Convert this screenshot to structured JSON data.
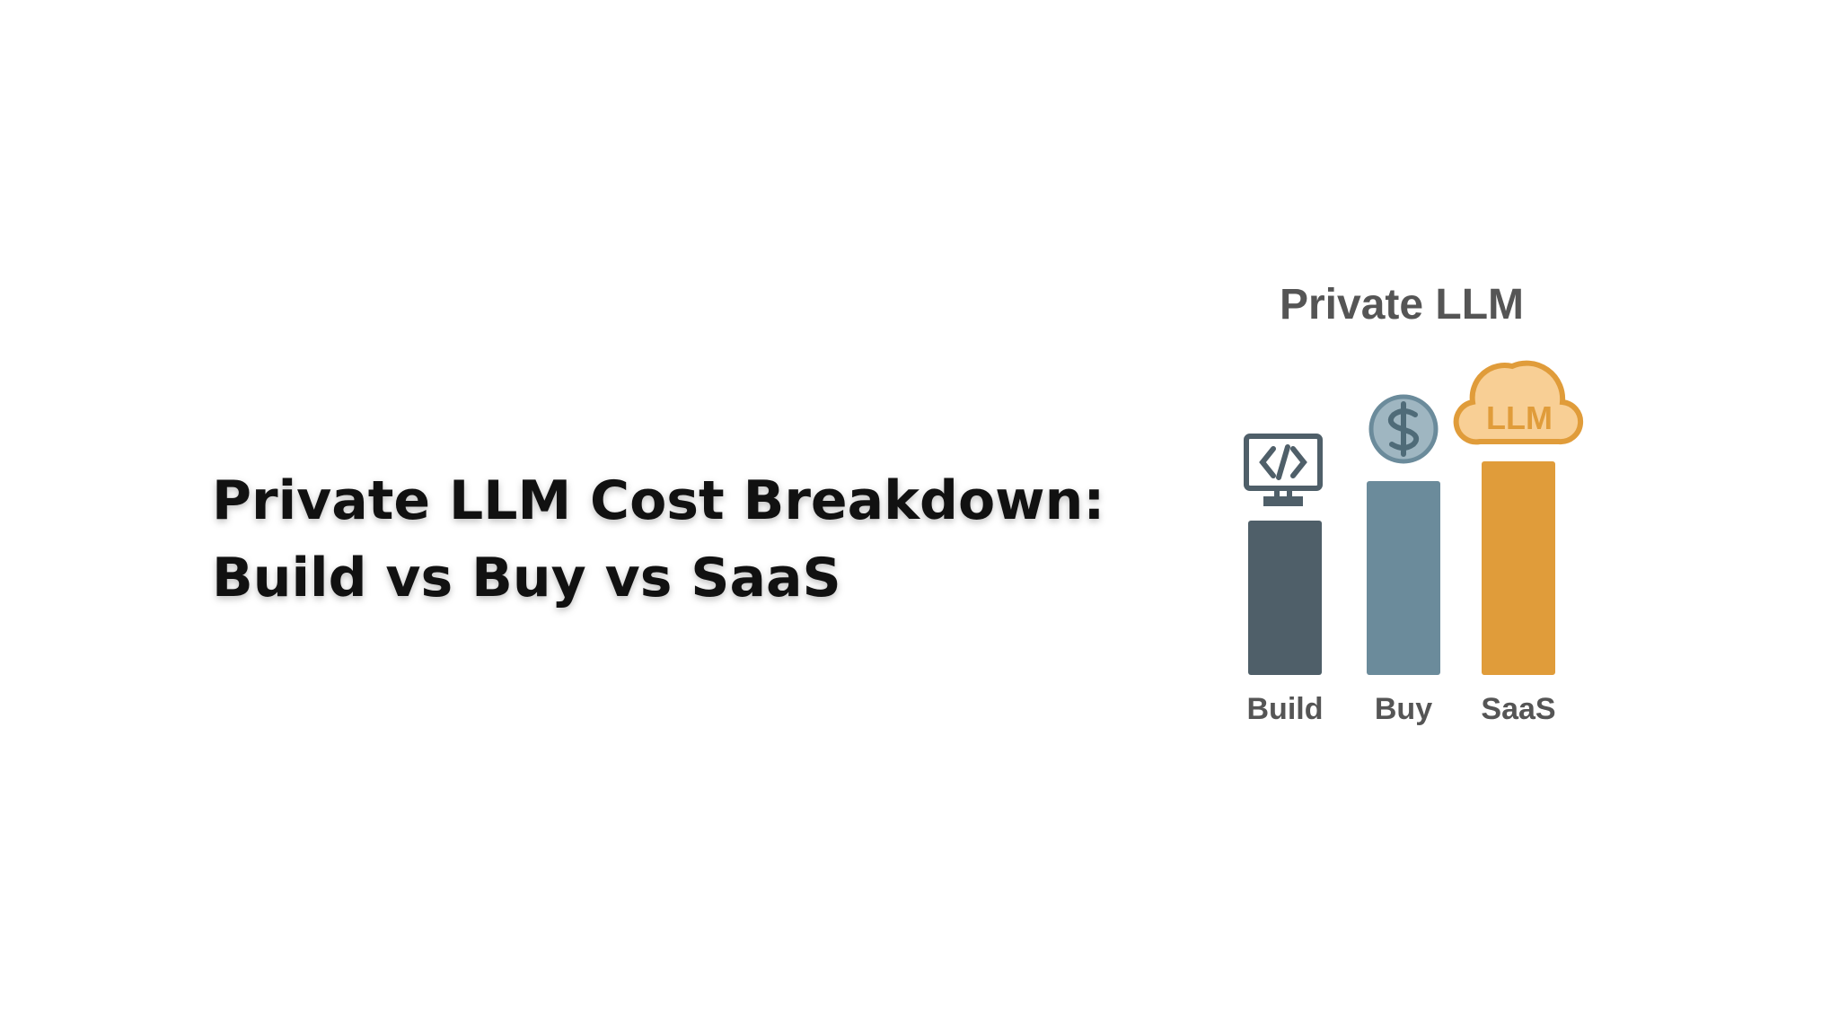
{
  "headline": {
    "lines": [
      "Private LLM Cost Breakdown:",
      "Build vs Buy vs SaaS"
    ]
  },
  "illustration": {
    "title": "Private LLM",
    "cloud_label": "LLM",
    "labels": [
      "Build",
      "Buy",
      "SaaS"
    ]
  }
}
